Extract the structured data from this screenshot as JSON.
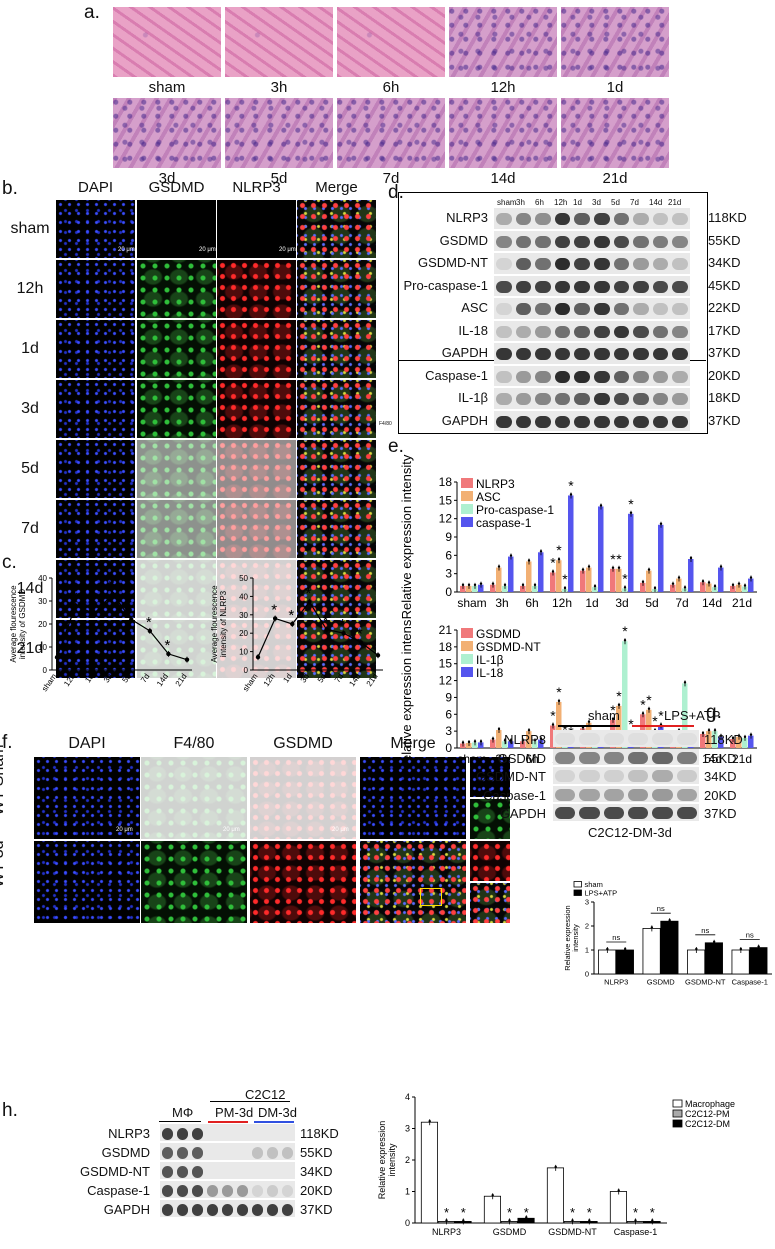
{
  "panels": {
    "a": {
      "label": "a.",
      "tiles": [
        "sham",
        "3h",
        "6h",
        "12h",
        "1d",
        "3d",
        "5d",
        "7d",
        "14d",
        "21d"
      ]
    },
    "b": {
      "label": "b.",
      "columns": [
        "DAPI",
        "GSDMD",
        "NLRP3",
        "Merge"
      ],
      "rows": [
        "sham",
        "12h",
        "1d",
        "3d",
        "5d",
        "7d",
        "14d",
        "21d"
      ],
      "scale": "20 μm",
      "side_note": "F4/80"
    },
    "c": {
      "label": "c.",
      "charts": [
        {
          "ylabel_l1": "Average flourescence",
          "ylabel_l2": "intensity of GSDMD",
          "categories": [
            "sham",
            "12h",
            "1d",
            "3d",
            "5d",
            "7d",
            "14d",
            "21d"
          ],
          "values": [
            5.5,
            28,
            24.5,
            33,
            22,
            17,
            7,
            4.5
          ],
          "yticks": [
            "0",
            "10",
            "20",
            "30",
            "40"
          ],
          "ymax": 40,
          "star": "*"
        },
        {
          "ylabel_l1": "Average flourescence",
          "ylabel_l2": "intensity of NLRP3",
          "categories": [
            "sham",
            "12h",
            "1d",
            "3d",
            "5d",
            "7d",
            "14d",
            "21d"
          ],
          "values": [
            7,
            28,
            25,
            37,
            22,
            20,
            15,
            8
          ],
          "yticks": [
            "0",
            "10",
            "20",
            "30",
            "40",
            "50"
          ],
          "ymax": 50,
          "star": "*"
        }
      ]
    },
    "d": {
      "label": "d.",
      "lanes": [
        "sham",
        "3h",
        "6h",
        "12h",
        "1d",
        "3d",
        "5d",
        "7d",
        "14d",
        "21d"
      ],
      "rows": [
        {
          "name": "NLRP3",
          "kd": "118KD"
        },
        {
          "name": "GSDMD",
          "kd": "55KD"
        },
        {
          "name": "GSDMD-NT",
          "kd": "34KD"
        },
        {
          "name": "Pro-caspase-1",
          "kd": "45KD"
        },
        {
          "name": "ASC",
          "kd": "22KD"
        },
        {
          "name": "IL-18",
          "kd": "17KD"
        },
        {
          "name": "GAPDH",
          "kd": "37KD"
        },
        {
          "name": "Caspase-1",
          "kd": "20KD"
        },
        {
          "name": "IL-1β",
          "kd": "18KD"
        },
        {
          "name": "GAPDH",
          "kd": "37KD"
        }
      ]
    },
    "e": {
      "label": "e."
    },
    "f": {
      "label": "f.",
      "columns": [
        "DAPI",
        "F4/80",
        "GSDMD",
        "Merge"
      ],
      "rows": [
        "WT-Sham",
        "WT-3d"
      ],
      "scale": "20 μm"
    },
    "g": {
      "label": "g.",
      "groups": [
        "sham",
        "LPS+ATP"
      ],
      "rows": [
        {
          "name": "NLRP3",
          "kd": "118KD"
        },
        {
          "name": "GSDMD",
          "kd": "55KD"
        },
        {
          "name": "GSDMD-NT",
          "kd": "34KD"
        },
        {
          "name": "Caspase-1",
          "kd": "20KD"
        },
        {
          "name": "GAPDH",
          "kd": "37KD"
        }
      ],
      "caption": "C2C12-DM-3d"
    },
    "h": {
      "label": "h.",
      "group_top": "C2C12",
      "groups": [
        "MΦ",
        "PM-3d",
        "DM-3d"
      ],
      "rows": [
        {
          "name": "NLRP3",
          "kd": "118KD"
        },
        {
          "name": "GSDMD",
          "kd": "55KD"
        },
        {
          "name": "GSDMD-NT",
          "kd": "34KD"
        },
        {
          "name": "Caspase-1",
          "kd": "20KD"
        },
        {
          "name": "GAPDH",
          "kd": "37KD"
        }
      ]
    }
  },
  "colors": {
    "nlrp3": "#f0787a",
    "asc": "#f2b074",
    "procasp": "#aef0d0",
    "casp": "#5555ee",
    "red_line": "#e02020",
    "blue_line": "#3050e0"
  },
  "chart_data": [
    {
      "type": "bar",
      "id": "e-top",
      "ylabel": "Relative expression intensity",
      "categories": [
        "sham",
        "3h",
        "6h",
        "12h",
        "1d",
        "3d",
        "5d",
        "7d",
        "14d",
        "21d"
      ],
      "yticks": [
        0,
        3,
        6,
        9,
        12,
        15,
        18
      ],
      "ylim": [
        0,
        18
      ],
      "legend": "top-left",
      "series": [
        {
          "name": "NLRP3",
          "values": [
            1.0,
            1.2,
            1.0,
            3.2,
            3.5,
            3.8,
            1.5,
            1.2,
            1.6,
            1.0
          ]
        },
        {
          "name": "ASC",
          "values": [
            1.0,
            4.0,
            5.0,
            5.2,
            4.0,
            3.8,
            3.5,
            2.2,
            1.4,
            1.2
          ]
        },
        {
          "name": "Pro-caspase-1",
          "values": [
            1.0,
            1.0,
            1.0,
            0.5,
            0.8,
            0.6,
            0.5,
            0.6,
            0.8,
            0.9
          ]
        },
        {
          "name": "caspase-1",
          "values": [
            1.2,
            5.8,
            6.5,
            15.8,
            14.0,
            12.8,
            11.0,
            5.4,
            4.0,
            2.2
          ]
        }
      ],
      "stars": [
        "12h",
        "3d"
      ]
    },
    {
      "type": "bar",
      "id": "e-bottom",
      "ylabel": "Relative expression intensity",
      "categories": [
        "sham",
        "3h",
        "6h",
        "12h",
        "1d",
        "3d",
        "5d",
        "7d",
        "14d",
        "21d"
      ],
      "yticks": [
        0,
        3,
        6,
        9,
        12,
        15,
        18,
        21
      ],
      "ylim": [
        0,
        21
      ],
      "legend": "top-left",
      "series": [
        {
          "name": "GSDMD",
          "values": [
            0.8,
            1.5,
            1.2,
            4.0,
            3.5,
            5.0,
            6.0,
            2.0,
            2.5,
            1.6
          ]
        },
        {
          "name": "GSDMD-NT",
          "values": [
            0.9,
            3.2,
            3.0,
            8.2,
            4.5,
            7.5,
            6.8,
            3.0,
            3.0,
            2.0
          ]
        },
        {
          "name": "IL-1β",
          "values": [
            1.0,
            1.2,
            1.2,
            1.5,
            1.8,
            19.0,
            3.0,
            11.5,
            3.0,
            1.8
          ]
        },
        {
          "name": "IL-18",
          "values": [
            1.0,
            1.2,
            1.5,
            1.2,
            1.2,
            2.5,
            4.0,
            2.5,
            2.0,
            2.2
          ]
        }
      ],
      "stars": [
        "12h",
        "3d",
        "5d"
      ]
    },
    {
      "type": "bar",
      "id": "g-chart",
      "ylabel_l1": "Relative expression",
      "ylabel_l2": "intensity",
      "categories": [
        "NLRP3",
        "GSDMD",
        "GSDMD-NT",
        "Caspase-1"
      ],
      "yticks": [
        0,
        1,
        2,
        3
      ],
      "ylim": [
        0,
        3
      ],
      "legend": "top-left",
      "series": [
        {
          "name": "sham",
          "values": [
            1.0,
            1.9,
            1.0,
            1.0
          ]
        },
        {
          "name": "LPS+ATP",
          "values": [
            1.0,
            2.2,
            1.3,
            1.1
          ]
        }
      ],
      "sig": "ns"
    },
    {
      "type": "bar",
      "id": "h-chart",
      "ylabel_l1": "Relative expression",
      "ylabel_l2": "intensity",
      "categories": [
        "NLRP3",
        "GSDMD",
        "GSDMD-NT",
        "Caspase-1"
      ],
      "yticks": [
        0,
        1,
        2,
        3,
        4
      ],
      "ylim": [
        0,
        4
      ],
      "legend": "top-right",
      "series": [
        {
          "name": "Macrophage",
          "values": [
            3.2,
            0.85,
            1.75,
            1.0
          ]
        },
        {
          "name": "C2C12-PM",
          "values": [
            0.05,
            0.05,
            0.05,
            0.05
          ]
        },
        {
          "name": "C2C12-DM",
          "values": [
            0.05,
            0.15,
            0.05,
            0.05
          ]
        }
      ]
    }
  ]
}
